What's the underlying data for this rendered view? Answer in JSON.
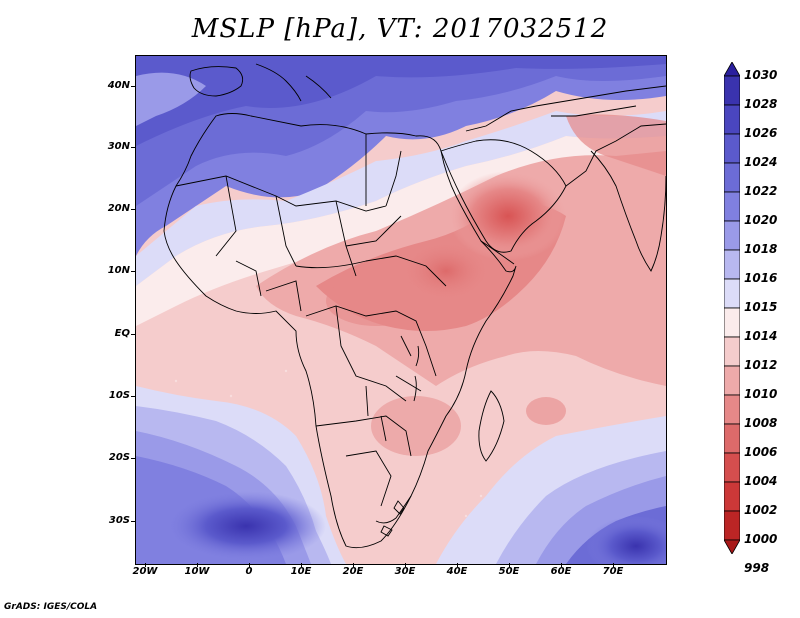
{
  "title": "MSLP [hPa], VT: 2017032512",
  "credit": "GrADS: IGES/COLA",
  "lat_labels": [
    "40N",
    "30N",
    "20N",
    "10N",
    "EQ",
    "10S",
    "20S",
    "30S"
  ],
  "lon_labels": [
    "20W",
    "10W",
    "0",
    "10E",
    "20E",
    "30E",
    "40E",
    "50E",
    "60E",
    "70E"
  ],
  "colorbar": {
    "levels": [
      "1030",
      "1028",
      "1026",
      "1024",
      "1022",
      "1020",
      "1018",
      "1016",
      "1015",
      "1014",
      "1012",
      "1010",
      "1008",
      "1006",
      "1004",
      "1002",
      "1000",
      "998"
    ],
    "colors": [
      "#2a1f9e",
      "#3a33ae",
      "#4a46bf",
      "#5b5acc",
      "#6c6cd6",
      "#8080e0",
      "#9a9ae8",
      "#b8b8f0",
      "#dcdcf8",
      "#fbecec",
      "#f5cccc",
      "#eeaaaa",
      "#e68888",
      "#dd6a6a",
      "#d54e4e",
      "#cc3838",
      "#bb2525",
      "#a81818"
    ]
  }
}
